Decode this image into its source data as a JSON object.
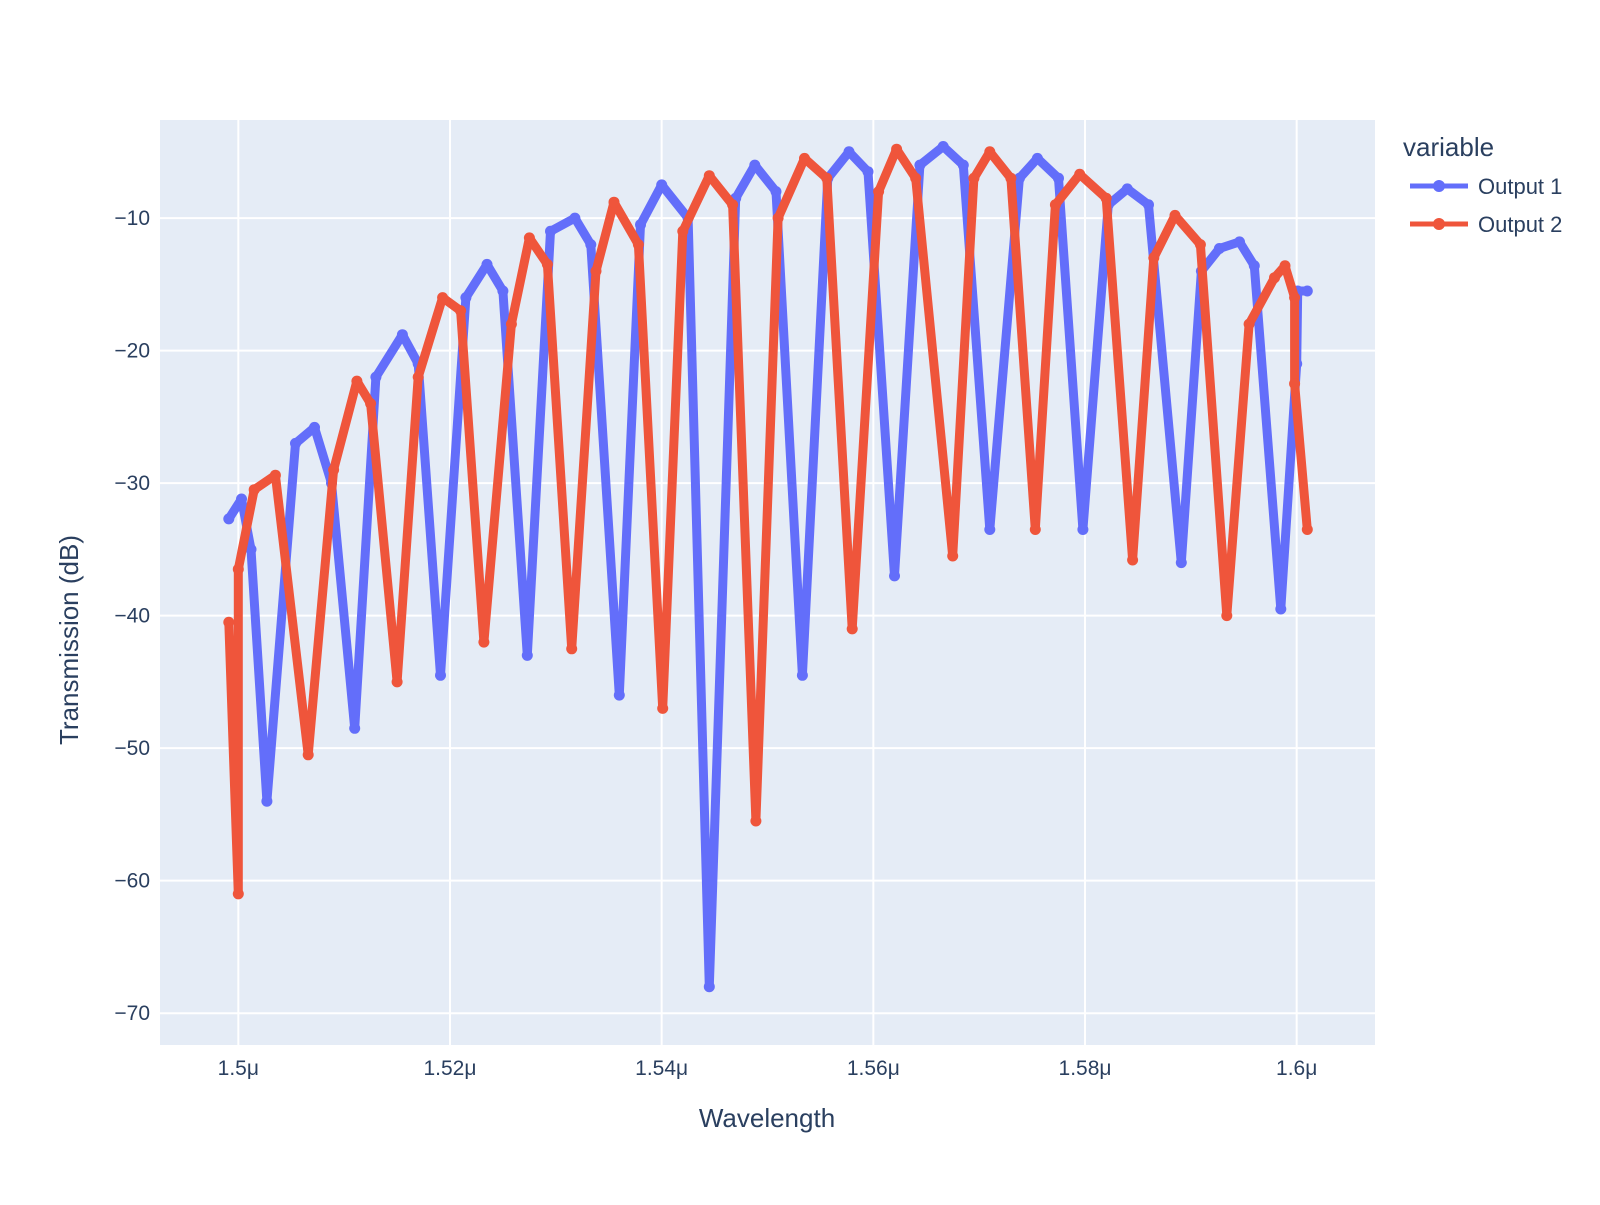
{
  "chart_data": {
    "type": "line",
    "title": "",
    "xlabel": "Wavelength",
    "ylabel": "Transmission (dB)",
    "xlim": [
      1.4926,
      1.6074
    ],
    "ylim": [
      -72.4,
      -2.6
    ],
    "x_ticks": [
      1.5,
      1.52,
      1.54,
      1.56,
      1.58,
      1.6
    ],
    "x_tick_labels": [
      "1.5μ",
      "1.52μ",
      "1.54μ",
      "1.56μ",
      "1.58μ",
      "1.6μ"
    ],
    "y_ticks": [
      -10,
      -20,
      -30,
      -40,
      -50,
      -60,
      -70
    ],
    "y_tick_labels": [
      "−10",
      "−20",
      "−30",
      "−40",
      "−50",
      "−60",
      "−70"
    ],
    "grid": true,
    "legend": {
      "title": "variable",
      "placement": "right"
    },
    "series": [
      {
        "name": "Output 1",
        "color": "#636efa",
        "x": [
          1.4991,
          1.5003,
          1.5012,
          1.5027,
          1.5054,
          1.5072,
          1.5088,
          1.511,
          1.513,
          1.5155,
          1.517,
          1.5191,
          1.5215,
          1.5235,
          1.525,
          1.5273,
          1.5295,
          1.5318,
          1.5333,
          1.536,
          1.538,
          1.54,
          1.5425,
          1.5445,
          1.547,
          1.5488,
          1.5508,
          1.5533,
          1.5557,
          1.5577,
          1.5595,
          1.562,
          1.5644,
          1.5666,
          1.5685,
          1.571,
          1.5738,
          1.5755,
          1.5775,
          1.5798,
          1.5822,
          1.584,
          1.586,
          1.5891,
          1.591,
          1.5927,
          1.5946,
          1.596,
          1.5985,
          1.6,
          1.6001,
          1.601
        ],
        "y": [
          -32.7,
          -31.2,
          -35,
          -54,
          -27,
          -25.8,
          -30,
          -48.5,
          -22,
          -18.8,
          -21,
          -44.5,
          -16,
          -13.5,
          -15.5,
          -43,
          -11,
          -10,
          -12,
          -46,
          -10.5,
          -7.5,
          -10,
          -68,
          -8.5,
          -6,
          -8,
          -44.5,
          -7,
          -5,
          -6.5,
          -37,
          -6,
          -4.6,
          -6,
          -33.5,
          -7,
          -5.5,
          -7,
          -33.5,
          -9,
          -7.8,
          -9,
          -36,
          -14,
          -12.3,
          -11.8,
          -13.6,
          -39.5,
          -21,
          -15.5,
          -15.5
        ]
      },
      {
        "name": "Output 2",
        "color": "#ef553b",
        "x": [
          1.4991,
          1.5,
          1.5,
          1.5015,
          1.5035,
          1.5066,
          1.509,
          1.5112,
          1.5125,
          1.515,
          1.517,
          1.5193,
          1.521,
          1.5232,
          1.5258,
          1.5275,
          1.5292,
          1.5315,
          1.5338,
          1.5355,
          1.5378,
          1.5401,
          1.542,
          1.5445,
          1.5467,
          1.5489,
          1.551,
          1.5535,
          1.5556,
          1.558,
          1.5605,
          1.5622,
          1.564,
          1.5675,
          1.5695,
          1.571,
          1.573,
          1.5753,
          1.5772,
          1.5795,
          1.582,
          1.5845,
          1.5865,
          1.5885,
          1.5909,
          1.5934,
          1.5955,
          1.5979,
          1.5989,
          1.5998,
          1.5998,
          1.601
        ],
        "y": [
          -40.5,
          -61,
          -36.5,
          -30.5,
          -29.4,
          -50.5,
          -29,
          -22.3,
          -24,
          -45,
          -22,
          -16,
          -17,
          -42,
          -18,
          -11.5,
          -13.5,
          -42.5,
          -14,
          -8.8,
          -12,
          -47,
          -11,
          -6.8,
          -9,
          -55.5,
          -10,
          -5.5,
          -7,
          -41,
          -8,
          -4.8,
          -7,
          -35.5,
          -7,
          -5,
          -7,
          -33.5,
          -9,
          -6.7,
          -8.5,
          -35.8,
          -13,
          -9.8,
          -12,
          -40,
          -18,
          -14.5,
          -13.6,
          -16,
          -22.5,
          -33.5
        ]
      }
    ]
  }
}
